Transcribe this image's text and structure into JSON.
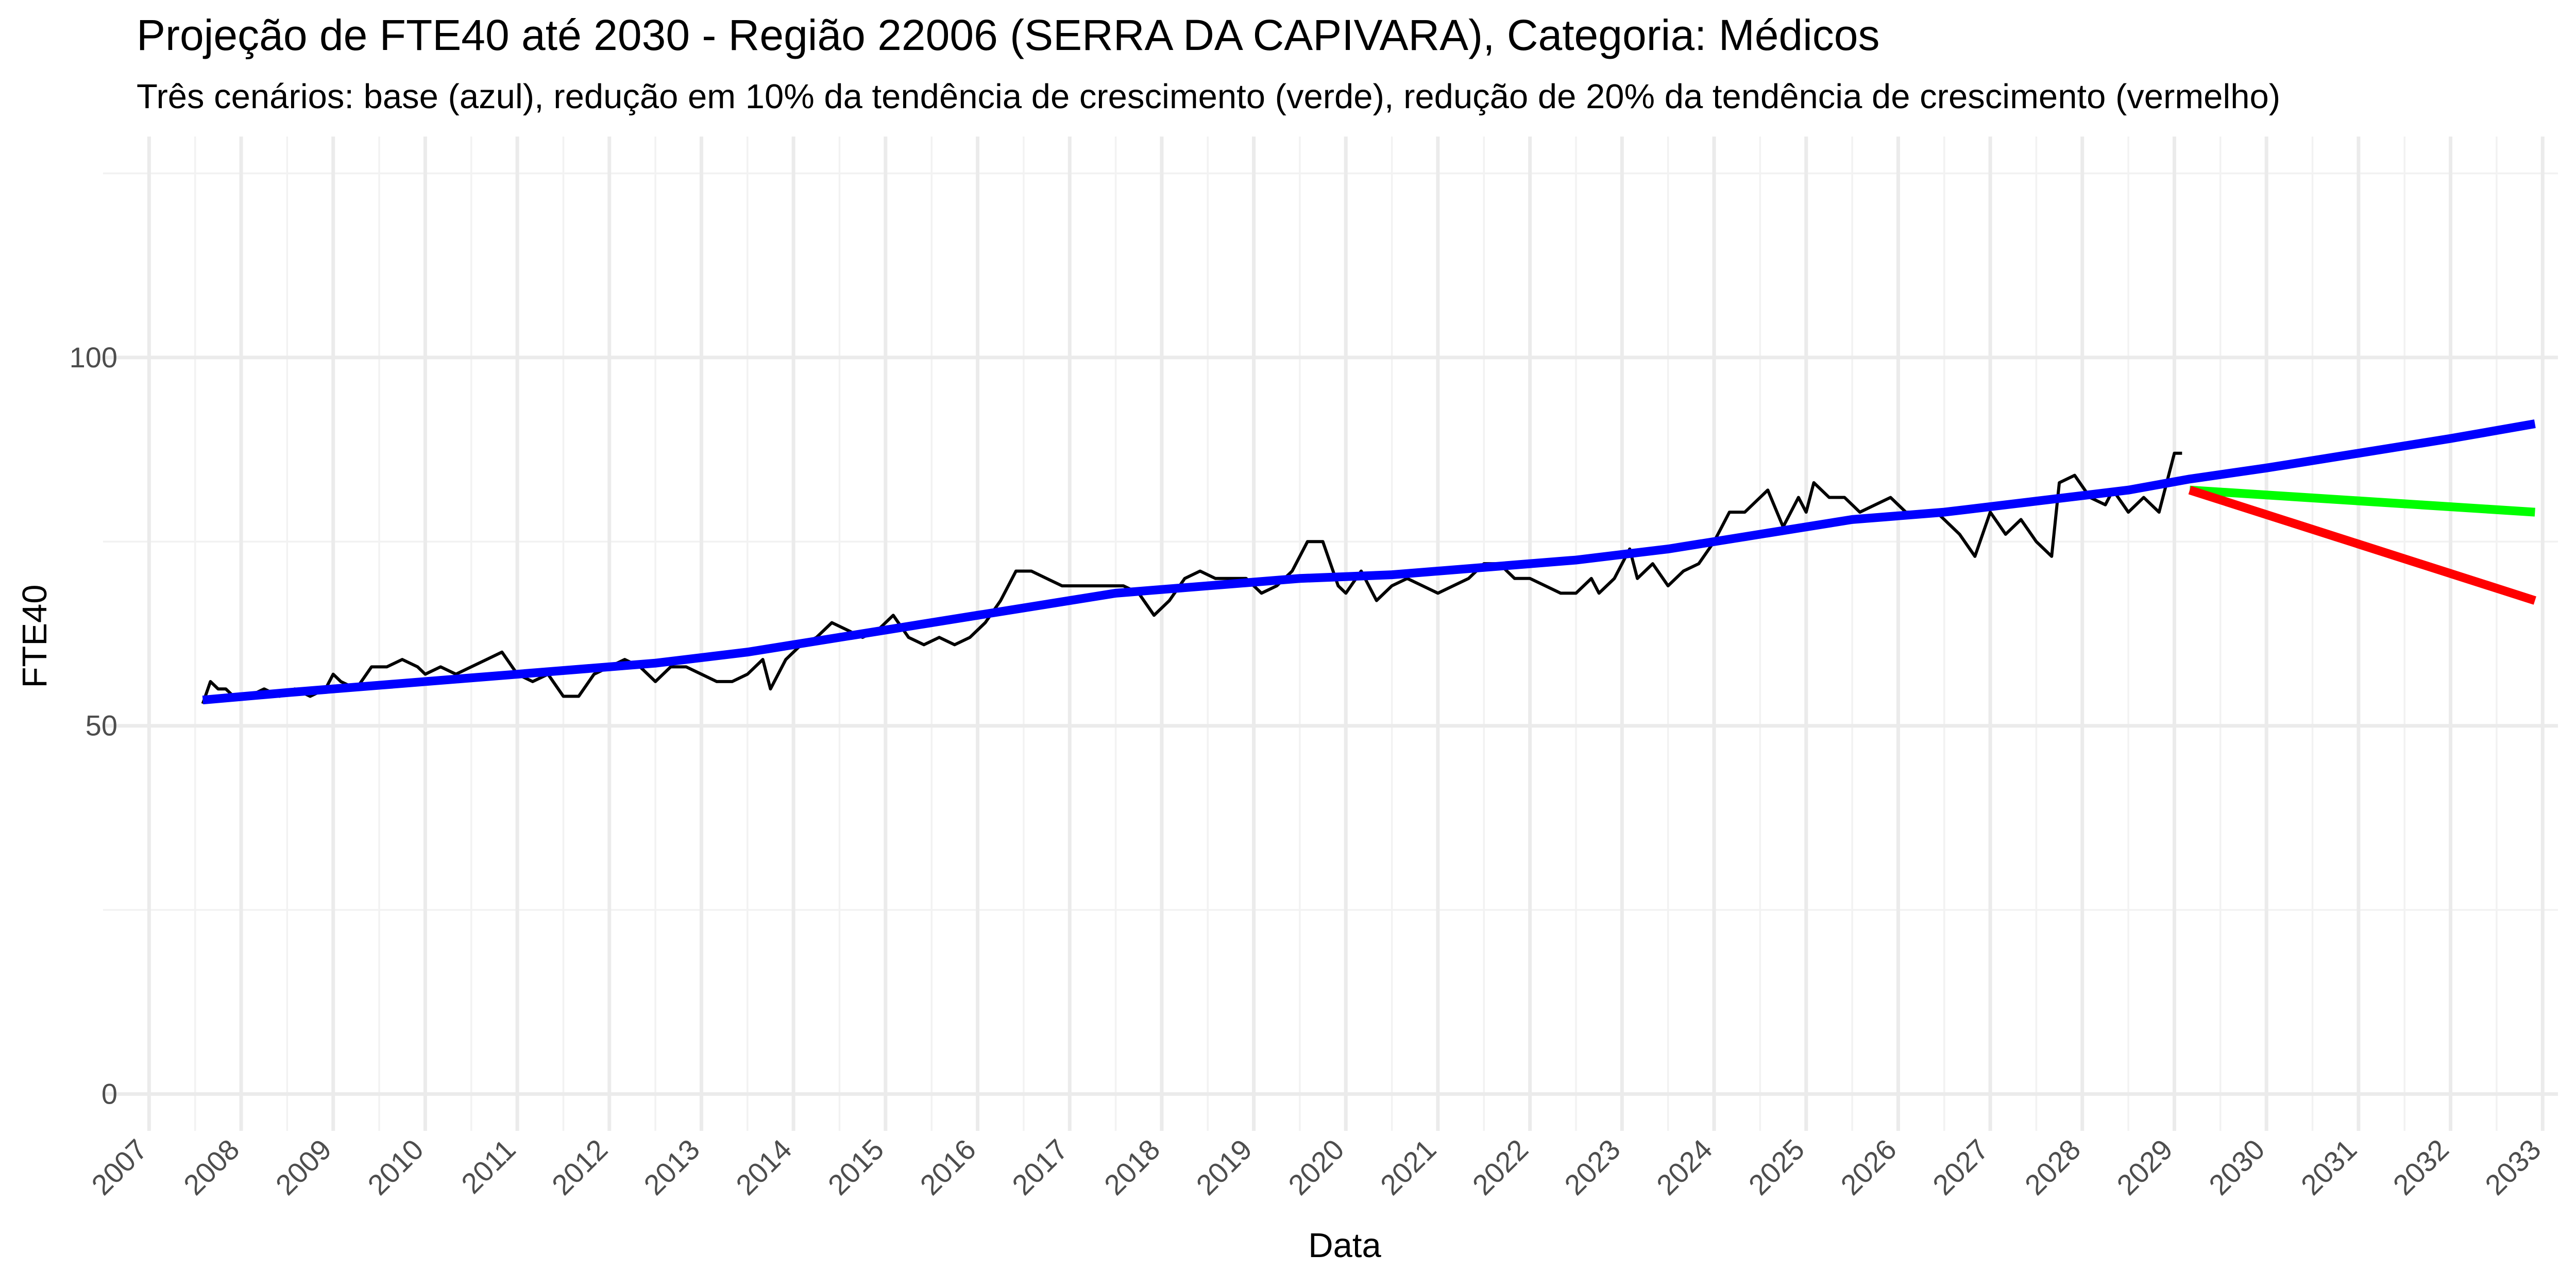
{
  "chart_data": {
    "type": "line",
    "title": "Projeção de FTE40 até 2030 - Região 22006 (SERRA DA CAPIVARA), Categoria: Médicos",
    "subtitle": "Três cenários: base (azul), redução em 10% da tendência de crescimento (verde), redução de 20% da tendência de crescimento (vermelho)",
    "xlabel": "Data",
    "ylabel": "FTE40",
    "xlim": [
      "2006-07-01",
      "2033-03-01"
    ],
    "ylim": [
      -5,
      130
    ],
    "y_ticks": [
      0,
      50,
      100
    ],
    "y_tick_labels": [
      "0",
      "50",
      "100"
    ],
    "x_tick_labels": [
      "2007",
      "2008",
      "2009",
      "2010",
      "2011",
      "2012",
      "2013",
      "2014",
      "2015",
      "2016",
      "2017",
      "2018",
      "2019",
      "2020",
      "2021",
      "2022",
      "2023",
      "2024",
      "2025",
      "2026",
      "2027",
      "2028",
      "2029",
      "2030",
      "2031",
      "2032",
      "2033"
    ],
    "grid": true,
    "legend": "none",
    "series": [
      {
        "color": "#000000",
        "values": [
          [
            "2007-08",
            53
          ],
          [
            "2007-09",
            56
          ],
          [
            "2007-10",
            55
          ],
          [
            "2007-11",
            55
          ],
          [
            "2007-12",
            54
          ],
          [
            "2008-02",
            54
          ],
          [
            "2008-04",
            55
          ],
          [
            "2008-06",
            54
          ],
          [
            "2008-08",
            55
          ],
          [
            "2008-10",
            54
          ],
          [
            "2008-12",
            55
          ],
          [
            "2009-01",
            57
          ],
          [
            "2009-02",
            56
          ],
          [
            "2009-04",
            55
          ],
          [
            "2009-06",
            58
          ],
          [
            "2009-08",
            58
          ],
          [
            "2009-10",
            59
          ],
          [
            "2009-12",
            58
          ],
          [
            "2010-01",
            57
          ],
          [
            "2010-03",
            58
          ],
          [
            "2010-05",
            57
          ],
          [
            "2010-07",
            58
          ],
          [
            "2010-09",
            59
          ],
          [
            "2010-11",
            60
          ],
          [
            "2011-01",
            57
          ],
          [
            "2011-03",
            56
          ],
          [
            "2011-05",
            57
          ],
          [
            "2011-07",
            54
          ],
          [
            "2011-09",
            54
          ],
          [
            "2011-11",
            57
          ],
          [
            "2012-01",
            58
          ],
          [
            "2012-03",
            59
          ],
          [
            "2012-05",
            58
          ],
          [
            "2012-07",
            56
          ],
          [
            "2012-09",
            58
          ],
          [
            "2012-11",
            58
          ],
          [
            "2013-01",
            57
          ],
          [
            "2013-03",
            56
          ],
          [
            "2013-05",
            56
          ],
          [
            "2013-07",
            57
          ],
          [
            "2013-09",
            59
          ],
          [
            "2013-10",
            55
          ],
          [
            "2013-12",
            59
          ],
          [
            "2014-02",
            61
          ],
          [
            "2014-04",
            62
          ],
          [
            "2014-06",
            64
          ],
          [
            "2014-08",
            63
          ],
          [
            "2014-10",
            62
          ],
          [
            "2014-12",
            63
          ],
          [
            "2015-02",
            65
          ],
          [
            "2015-04",
            62
          ],
          [
            "2015-06",
            61
          ],
          [
            "2015-08",
            62
          ],
          [
            "2015-10",
            61
          ],
          [
            "2015-12",
            62
          ],
          [
            "2016-02",
            64
          ],
          [
            "2016-04",
            67
          ],
          [
            "2016-06",
            71
          ],
          [
            "2016-08",
            71
          ],
          [
            "2016-10",
            70
          ],
          [
            "2016-12",
            69
          ],
          [
            "2017-02",
            69
          ],
          [
            "2017-04",
            69
          ],
          [
            "2017-06",
            69
          ],
          [
            "2017-08",
            69
          ],
          [
            "2017-10",
            68
          ],
          [
            "2017-12",
            65
          ],
          [
            "2018-02",
            67
          ],
          [
            "2018-04",
            70
          ],
          [
            "2018-06",
            71
          ],
          [
            "2018-08",
            70
          ],
          [
            "2018-10",
            70
          ],
          [
            "2018-12",
            70
          ],
          [
            "2019-02",
            68
          ],
          [
            "2019-04",
            69
          ],
          [
            "2019-06",
            71
          ],
          [
            "2019-08",
            75
          ],
          [
            "2019-10",
            75
          ],
          [
            "2019-12",
            69
          ],
          [
            "2020-01",
            68
          ],
          [
            "2020-03",
            71
          ],
          [
            "2020-05",
            67
          ],
          [
            "2020-07",
            69
          ],
          [
            "2020-09",
            70
          ],
          [
            "2020-11",
            69
          ],
          [
            "2021-01",
            68
          ],
          [
            "2021-03",
            69
          ],
          [
            "2021-05",
            70
          ],
          [
            "2021-07",
            72
          ],
          [
            "2021-09",
            72
          ],
          [
            "2021-11",
            70
          ],
          [
            "2022-01",
            70
          ],
          [
            "2022-03",
            69
          ],
          [
            "2022-05",
            68
          ],
          [
            "2022-07",
            68
          ],
          [
            "2022-09",
            70
          ],
          [
            "2022-10",
            68
          ],
          [
            "2022-12",
            70
          ],
          [
            "2023-02",
            74
          ],
          [
            "2023-03",
            70
          ],
          [
            "2023-05",
            72
          ],
          [
            "2023-07",
            69
          ],
          [
            "2023-09",
            71
          ],
          [
            "2023-11",
            72
          ],
          [
            "2024-01",
            75
          ],
          [
            "2024-03",
            79
          ],
          [
            "2024-05",
            79
          ],
          [
            "2024-07",
            81
          ],
          [
            "2024-08",
            82
          ],
          [
            "2024-10",
            77
          ],
          [
            "2024-12",
            81
          ],
          [
            "2025-01",
            79
          ],
          [
            "2025-02",
            83
          ],
          [
            "2025-04",
            81
          ],
          [
            "2025-06",
            81
          ],
          [
            "2025-08",
            79
          ],
          [
            "2025-10",
            80
          ],
          [
            "2025-12",
            81
          ],
          [
            "2026-02",
            79
          ],
          [
            "2026-04",
            79
          ],
          [
            "2026-06",
            79
          ],
          [
            "2026-08",
            77
          ],
          [
            "2026-09",
            76
          ],
          [
            "2026-11",
            73
          ],
          [
            "2027-01",
            79
          ],
          [
            "2027-03",
            76
          ],
          [
            "2027-05",
            78
          ],
          [
            "2027-07",
            75
          ],
          [
            "2027-09",
            73
          ],
          [
            "2027-10",
            83
          ],
          [
            "2027-12",
            84
          ],
          [
            "2028-02",
            81
          ],
          [
            "2028-04",
            80
          ],
          [
            "2028-05",
            82
          ],
          [
            "2028-07",
            79
          ],
          [
            "2028-09",
            81
          ],
          [
            "2028-11",
            79
          ],
          [
            "2029-01",
            87
          ],
          [
            "2029-02",
            87
          ]
        ]
      },
      {
        "color": "#0000ff",
        "values": [
          [
            "2007-08",
            53.5
          ],
          [
            "2008-07",
            54.5
          ],
          [
            "2009-07",
            55.5
          ],
          [
            "2010-07",
            56.5
          ],
          [
            "2011-07",
            57.5
          ],
          [
            "2012-07",
            58.5
          ],
          [
            "2013-07",
            60
          ],
          [
            "2014-07",
            62
          ],
          [
            "2015-07",
            64
          ],
          [
            "2016-07",
            66
          ],
          [
            "2017-07",
            68
          ],
          [
            "2018-07",
            69
          ],
          [
            "2019-07",
            70
          ],
          [
            "2020-07",
            70.5
          ],
          [
            "2021-07",
            71.5
          ],
          [
            "2022-07",
            72.5
          ],
          [
            "2023-07",
            74
          ],
          [
            "2024-07",
            76
          ],
          [
            "2025-07",
            78
          ],
          [
            "2026-07",
            79
          ],
          [
            "2027-07",
            80.5
          ],
          [
            "2028-07",
            82
          ],
          [
            "2029-03",
            83.5
          ],
          [
            "2030-01",
            85
          ],
          [
            "2031-01",
            87
          ],
          [
            "2032-01",
            89
          ],
          [
            "2032-12",
            91
          ]
        ]
      },
      {
        "color": "#00ff00",
        "values": [
          [
            "2029-03",
            82
          ],
          [
            "2032-12",
            79
          ]
        ]
      },
      {
        "color": "#ff0000",
        "values": [
          [
            "2029-03",
            82
          ],
          [
            "2032-12",
            67
          ]
        ]
      }
    ]
  }
}
